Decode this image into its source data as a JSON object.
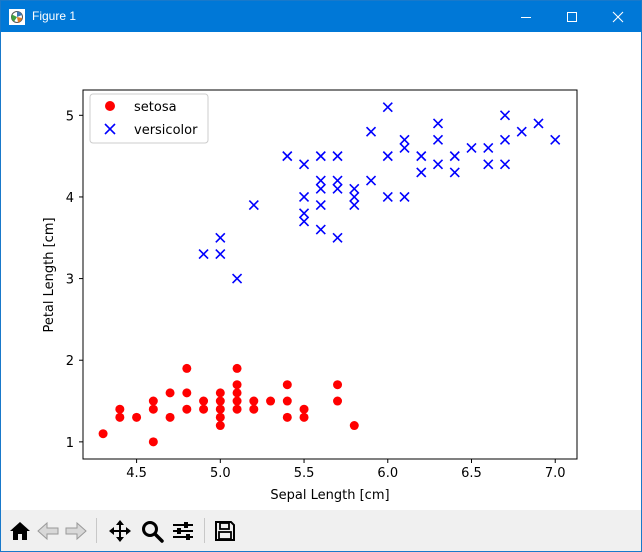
{
  "window": {
    "title": "Figure 1"
  },
  "toolbar": {
    "buttons": [
      {
        "name": "home",
        "icon": "home-icon"
      },
      {
        "name": "back",
        "icon": "arrow-left-icon"
      },
      {
        "name": "forward",
        "icon": "arrow-right-icon"
      },
      {
        "name": "pan",
        "icon": "move-icon"
      },
      {
        "name": "zoom",
        "icon": "magnifier-icon"
      },
      {
        "name": "configure",
        "icon": "sliders-icon"
      },
      {
        "name": "save",
        "icon": "floppy-disk-icon"
      }
    ]
  },
  "chart_data": {
    "type": "scatter",
    "xlabel": "Sepal Length [cm]",
    "ylabel": "Petal Length [cm]",
    "xlim": [
      4.18,
      7.13
    ],
    "ylim": [
      0.79,
      5.31
    ],
    "xticks": [
      4.5,
      5.0,
      5.5,
      6.0,
      6.5,
      7.0
    ],
    "xtick_labels": [
      "4.5",
      "5.0",
      "5.5",
      "6.0",
      "6.5",
      "7.0"
    ],
    "yticks": [
      1,
      2,
      3,
      4,
      5
    ],
    "ytick_labels": [
      "1",
      "2",
      "3",
      "4",
      "5"
    ],
    "legend_position": "upper-left",
    "grid": false,
    "series": [
      {
        "name": "setosa",
        "marker": "circle",
        "color": "#ff0000",
        "points": [
          [
            4.3,
            1.1
          ],
          [
            4.4,
            1.4
          ],
          [
            4.4,
            1.3
          ],
          [
            4.5,
            1.3
          ],
          [
            4.6,
            1.5
          ],
          [
            4.6,
            1.4
          ],
          [
            4.6,
            1.0
          ],
          [
            4.7,
            1.6
          ],
          [
            4.7,
            1.3
          ],
          [
            4.8,
            1.9
          ],
          [
            4.8,
            1.6
          ],
          [
            4.8,
            1.4
          ],
          [
            4.9,
            1.5
          ],
          [
            4.9,
            1.4
          ],
          [
            5.0,
            1.6
          ],
          [
            5.0,
            1.5
          ],
          [
            5.0,
            1.4
          ],
          [
            5.0,
            1.3
          ],
          [
            5.0,
            1.2
          ],
          [
            5.1,
            1.9
          ],
          [
            5.1,
            1.7
          ],
          [
            5.1,
            1.6
          ],
          [
            5.1,
            1.5
          ],
          [
            5.1,
            1.4
          ],
          [
            5.2,
            1.5
          ],
          [
            5.2,
            1.4
          ],
          [
            5.3,
            1.5
          ],
          [
            5.4,
            1.7
          ],
          [
            5.4,
            1.5
          ],
          [
            5.4,
            1.3
          ],
          [
            5.5,
            1.4
          ],
          [
            5.5,
            1.3
          ],
          [
            5.7,
            1.7
          ],
          [
            5.7,
            1.5
          ],
          [
            5.8,
            1.2
          ]
        ]
      },
      {
        "name": "versicolor",
        "marker": "x",
        "color": "#0000ff",
        "points": [
          [
            4.9,
            3.3
          ],
          [
            5.0,
            3.5
          ],
          [
            5.0,
            3.3
          ],
          [
            5.1,
            3.0
          ],
          [
            5.2,
            3.9
          ],
          [
            5.4,
            4.5
          ],
          [
            5.5,
            4.4
          ],
          [
            5.5,
            4.0
          ],
          [
            5.5,
            3.8
          ],
          [
            5.5,
            3.7
          ],
          [
            5.6,
            4.5
          ],
          [
            5.6,
            4.2
          ],
          [
            5.6,
            4.1
          ],
          [
            5.6,
            3.9
          ],
          [
            5.6,
            3.6
          ],
          [
            5.7,
            4.5
          ],
          [
            5.7,
            4.2
          ],
          [
            5.7,
            4.1
          ],
          [
            5.7,
            3.5
          ],
          [
            5.8,
            4.1
          ],
          [
            5.8,
            4.0
          ],
          [
            5.8,
            3.9
          ],
          [
            5.9,
            4.8
          ],
          [
            5.9,
            4.2
          ],
          [
            6.0,
            5.1
          ],
          [
            6.0,
            4.5
          ],
          [
            6.0,
            4.0
          ],
          [
            6.1,
            4.7
          ],
          [
            6.1,
            4.6
          ],
          [
            6.1,
            4.0
          ],
          [
            6.2,
            4.5
          ],
          [
            6.2,
            4.3
          ],
          [
            6.3,
            4.9
          ],
          [
            6.3,
            4.7
          ],
          [
            6.3,
            4.4
          ],
          [
            6.4,
            4.5
          ],
          [
            6.4,
            4.3
          ],
          [
            6.5,
            4.6
          ],
          [
            6.6,
            4.6
          ],
          [
            6.6,
            4.4
          ],
          [
            6.7,
            5.0
          ],
          [
            6.7,
            4.7
          ],
          [
            6.7,
            4.4
          ],
          [
            6.8,
            4.8
          ],
          [
            6.9,
            4.9
          ],
          [
            7.0,
            4.7
          ]
        ]
      }
    ]
  }
}
